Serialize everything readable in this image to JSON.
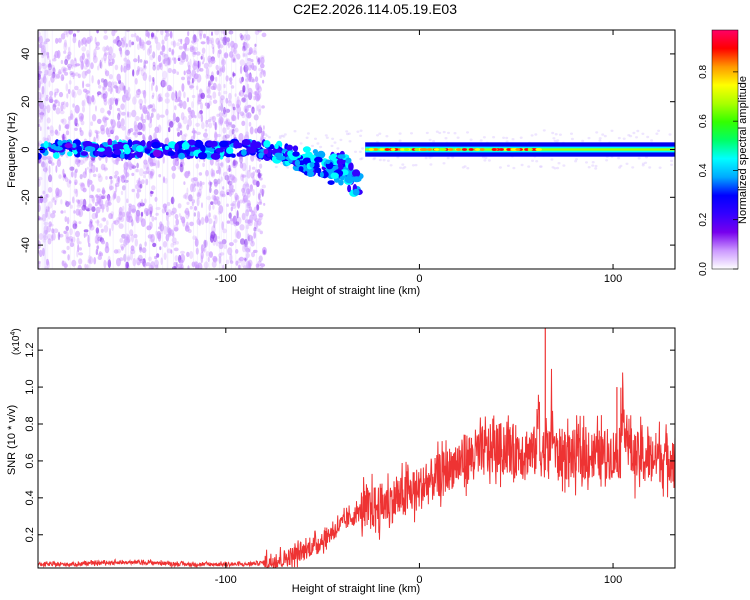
{
  "title": "C2E2.2026.114.05.19.E03",
  "chart_data": [
    {
      "type": "heatmap",
      "title": "C2E2.2026.114.05.19.E03",
      "xlabel": "Height of straight line (km)",
      "ylabel": "Frequency (Hz)",
      "xlim": [
        -197,
        132
      ],
      "ylim": [
        -50,
        50
      ],
      "xticks": [
        -100,
        0,
        100
      ],
      "xtick_labels": [
        "-100",
        "0",
        "100"
      ],
      "yticks": [
        -40,
        -20,
        0,
        20,
        40
      ],
      "ytick_labels": [
        "-40",
        "-20",
        "0",
        "20",
        "40"
      ],
      "colorbar": {
        "label": "Normalized spectral amplitude",
        "range": [
          0,
          0.97
        ],
        "ticks": [
          0.0,
          0.2,
          0.4,
          0.6,
          0.8
        ],
        "tick_labels": [
          "0.0",
          "0.2",
          "0.4",
          "0.6",
          "0.8"
        ],
        "colors": [
          "#ffffff",
          "#cc99ff",
          "#7700ee",
          "#3300ff",
          "#0000ff",
          "#00aaff",
          "#00ffff",
          "#00ff66",
          "#33ff00",
          "#aaff00",
          "#ffff00",
          "#ff9900",
          "#ff0000",
          "#ff0066"
        ]
      },
      "regions": [
        {
          "name": "diffuse noise",
          "x_range": [
            -197,
            -80
          ],
          "freq_range": [
            -50,
            50
          ],
          "amplitude": 0.05
        },
        {
          "name": "low-frequency band",
          "x_range": [
            -197,
            -80
          ],
          "freq_center": 0,
          "freq_halfwidth": 3,
          "amplitude": 0.3
        },
        {
          "name": "descending branch",
          "x_range": [
            -80,
            -30
          ],
          "freq_start": 0,
          "freq_end": -18,
          "amplitude": 0.3
        },
        {
          "name": "narrow carrier line",
          "x_range": [
            -28,
            132
          ],
          "freq_center": 0,
          "freq_halfwidth": 3,
          "amplitude": 0.85
        }
      ]
    },
    {
      "type": "line",
      "xlabel": "Height of straight line (km)",
      "ylabel": "SNR (10 * v/v)",
      "y_multiplier": "(x10",
      "y_exponent": "4",
      "xlim": [
        -197,
        132
      ],
      "ylim": [
        0.02,
        1.32
      ],
      "xticks": [
        -100,
        0,
        100
      ],
      "xtick_labels": [
        "-100",
        "0",
        "100"
      ],
      "yticks": [
        0.2,
        0.4,
        0.6,
        0.8,
        1.0,
        1.2
      ],
      "ytick_labels": [
        "0.2",
        "0.4",
        "0.6",
        "0.8",
        "1.0",
        "1.2"
      ],
      "color": "#ee3333",
      "series": [
        {
          "name": "SNR",
          "x": [
            -197,
            -180,
            -160,
            -140,
            -120,
            -100,
            -90,
            -80,
            -70,
            -60,
            -50,
            -40,
            -30,
            -20,
            -10,
            0,
            10,
            20,
            30,
            40,
            50,
            60,
            65,
            70,
            80,
            90,
            100,
            102,
            110,
            120,
            132
          ],
          "y": [
            0.04,
            0.04,
            0.05,
            0.05,
            0.04,
            0.04,
            0.04,
            0.05,
            0.07,
            0.11,
            0.17,
            0.26,
            0.33,
            0.36,
            0.4,
            0.45,
            0.52,
            0.59,
            0.64,
            0.67,
            0.66,
            0.65,
            1.32,
            0.64,
            0.63,
            0.63,
            0.64,
            1.0,
            0.62,
            0.62,
            0.62
          ]
        }
      ]
    }
  ]
}
